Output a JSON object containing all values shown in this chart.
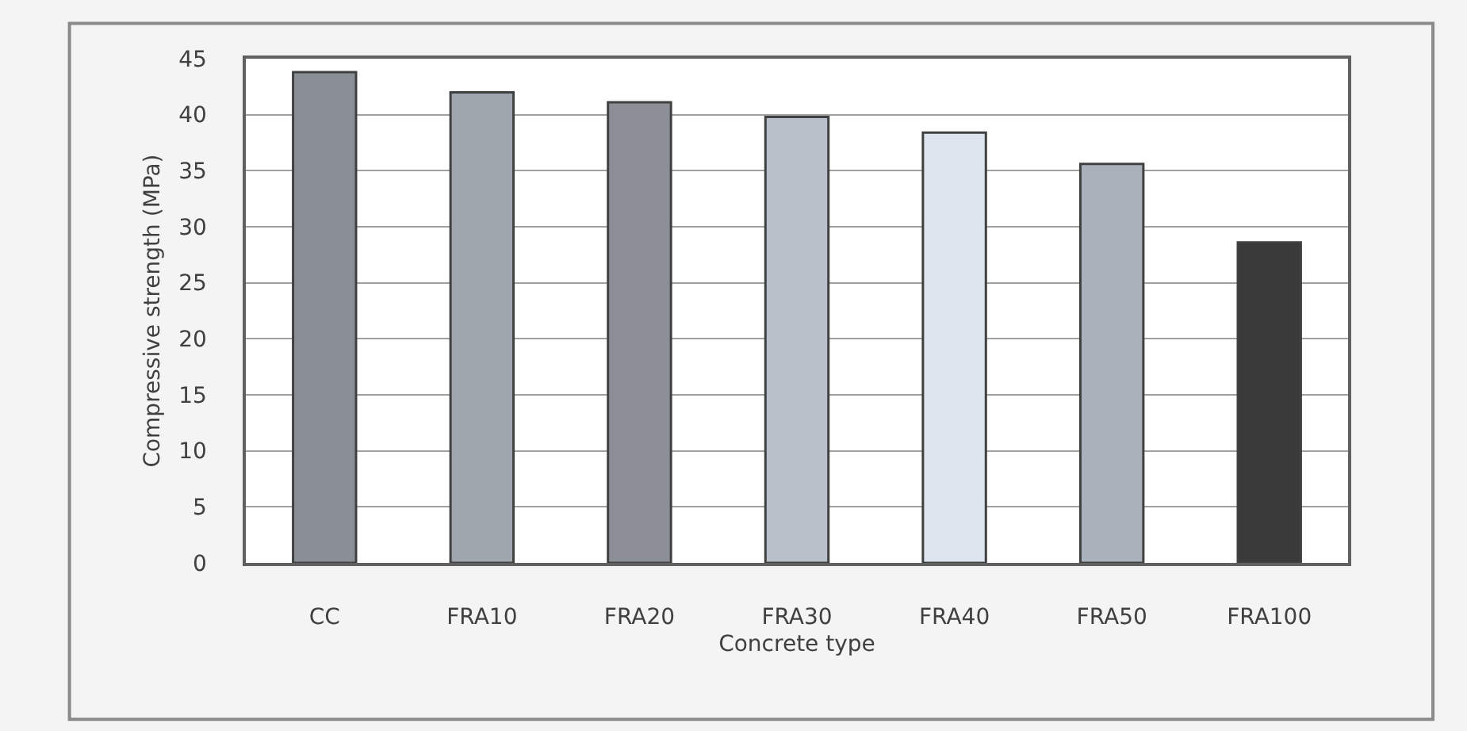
{
  "chart_data": {
    "type": "bar",
    "xlabel": "Concrete type",
    "ylabel": "Compressive strength (MPa)",
    "categories": [
      "CC",
      "FRA10",
      "FRA20",
      "FRA30",
      "FRA40",
      "FRA50",
      "FRA100"
    ],
    "values": [
      43.8,
      42.0,
      41.1,
      39.8,
      38.4,
      35.6,
      28.6
    ],
    "colors": [
      "#8a8f96",
      "#a0a6ae",
      "#8c9096",
      "#b8c0ca",
      "#dde5ef",
      "#a9b1bb",
      "#3a3a3a"
    ],
    "ylim": [
      0,
      45
    ],
    "yticks": [
      0,
      5,
      10,
      15,
      20,
      25,
      30,
      35,
      40,
      45
    ],
    "grid": "y"
  }
}
